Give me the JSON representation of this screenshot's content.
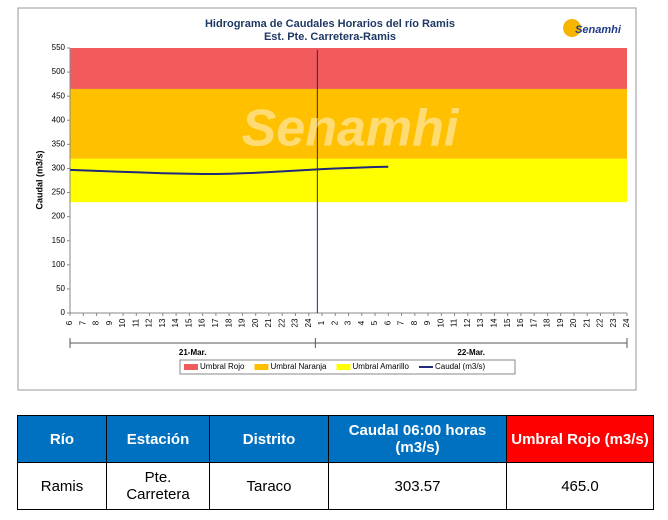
{
  "chart_data": {
    "type": "line",
    "title": "Hidrograma de Caudales Horarios del río Ramis",
    "subtitle": "Est. Pte. Carretera-Ramis",
    "y_label": "Caudal (m3/s)",
    "logo": "Senamhi",
    "watermark": "Senamhi",
    "ylim": [
      0,
      550
    ],
    "yticks": [
      0,
      50,
      100,
      150,
      200,
      250,
      300,
      350,
      400,
      450,
      500,
      550
    ],
    "categories": [
      "6",
      "7",
      "8",
      "9",
      "10",
      "11",
      "12",
      "13",
      "14",
      "15",
      "16",
      "17",
      "18",
      "19",
      "20",
      "21",
      "22",
      "23",
      "24",
      "1",
      "2",
      "3",
      "4",
      "5",
      "6",
      "7",
      "8",
      "9",
      "10",
      "11",
      "12",
      "13",
      "14",
      "15",
      "16",
      "17",
      "18",
      "19",
      "20",
      "21",
      "22",
      "23",
      "24"
    ],
    "day_labels": [
      "21-Mar.",
      "22-Mar."
    ],
    "thresholds": [
      {
        "name": "Umbral Rojo",
        "color": "#f25b5b",
        "value": 465
      },
      {
        "name": "Umbral Naranja",
        "color": "#ffc000",
        "value": 320
      },
      {
        "name": "Umbral Amarillo",
        "color": "#ffff00",
        "value": 230
      }
    ],
    "series": [
      {
        "name": "Caudal (m3/s)",
        "color": "#1f2a7a",
        "values": [
          297,
          296,
          295,
          294,
          293,
          292,
          291,
          290,
          289.5,
          289,
          288.5,
          288.5,
          289,
          290,
          291,
          292.5,
          294,
          295.5,
          297,
          298.5,
          300,
          301,
          302,
          303,
          303.57,
          null,
          null,
          null,
          null,
          null,
          null,
          null,
          null,
          null,
          null,
          null,
          null,
          null,
          null,
          null,
          null,
          null,
          null
        ]
      }
    ]
  },
  "table": {
    "header": [
      "Río",
      "Estación",
      "Distrito",
      "Caudal  06:00 horas (m3/s)",
      "Umbral Rojo (m3/s)"
    ],
    "rows": [
      [
        "Ramis",
        "Pte. Carretera",
        "Taraco",
        "303.57",
        "465.0"
      ]
    ]
  }
}
